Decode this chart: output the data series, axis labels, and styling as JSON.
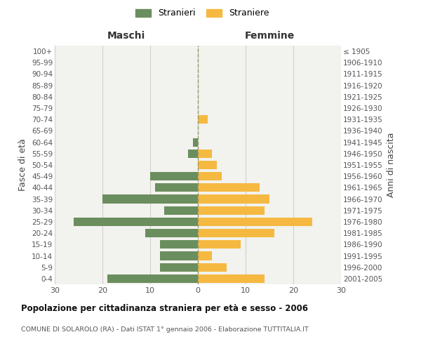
{
  "age_groups_bottom_to_top": [
    "0-4",
    "5-9",
    "10-14",
    "15-19",
    "20-24",
    "25-29",
    "30-34",
    "35-39",
    "40-44",
    "45-49",
    "50-54",
    "55-59",
    "60-64",
    "65-69",
    "70-74",
    "75-79",
    "80-84",
    "85-89",
    "90-94",
    "95-99",
    "100+"
  ],
  "birth_years_bottom_to_top": [
    "2001-2005",
    "1996-2000",
    "1991-1995",
    "1986-1990",
    "1981-1985",
    "1976-1980",
    "1971-1975",
    "1966-1970",
    "1961-1965",
    "1956-1960",
    "1951-1955",
    "1946-1950",
    "1941-1945",
    "1936-1940",
    "1931-1935",
    "1926-1930",
    "1921-1925",
    "1916-1920",
    "1911-1915",
    "1906-1910",
    "≤ 1905"
  ],
  "maschi_bottom_to_top": [
    19,
    8,
    8,
    8,
    11,
    26,
    7,
    20,
    9,
    10,
    0,
    2,
    1,
    0,
    0,
    0,
    0,
    0,
    0,
    0,
    0
  ],
  "femmine_bottom_to_top": [
    14,
    6,
    3,
    9,
    16,
    24,
    14,
    15,
    13,
    5,
    4,
    3,
    0,
    0,
    2,
    0,
    0,
    0,
    0,
    0,
    0
  ],
  "male_color": "#6b8e5e",
  "female_color": "#f5b942",
  "grid_color": "#d0d0cc",
  "dashed_line_color": "#999966",
  "xlim": 30,
  "title": "Popolazione per cittadinanza straniera per età e sesso - 2006",
  "subtitle": "COMUNE DI SOLAROLO (RA) - Dati ISTAT 1° gennaio 2006 - Elaborazione TUTTITALIA.IT",
  "ylabel_left": "Fasce di età",
  "ylabel_right": "Anni di nascita",
  "header_left": "Maschi",
  "header_right": "Femmine",
  "legend_male": "Stranieri",
  "legend_female": "Straniere",
  "bg_color": "#ffffff",
  "plot_bg_color": "#f2f2ee"
}
